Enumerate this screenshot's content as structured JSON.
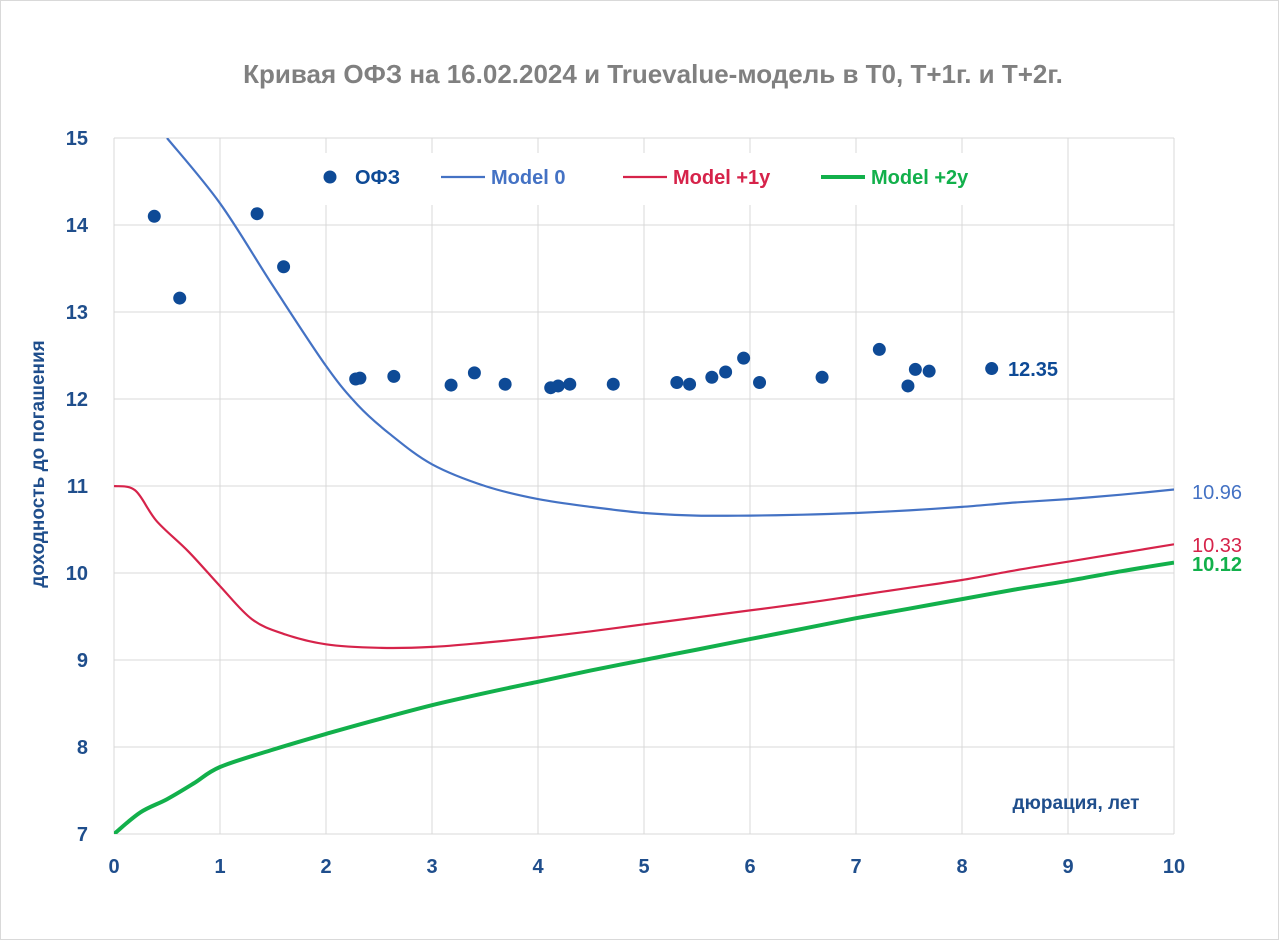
{
  "chart_data": {
    "type": "scatter",
    "title": "Кривая ОФЗ на 16.02.2024 и Truevalue-модель в Т0, Т+1г. и Т+2г.",
    "xlabel": "дюрация, лет",
    "ylabel": "доходность до погашения",
    "xlim": [
      0,
      10
    ],
    "ylim": [
      7,
      15
    ],
    "xticks": [
      "0",
      "1",
      "2",
      "3",
      "4",
      "5",
      "6",
      "7",
      "8",
      "9",
      "10"
    ],
    "yticks": [
      "7",
      "8",
      "9",
      "10",
      "11",
      "12",
      "13",
      "14",
      "15"
    ],
    "grid": true,
    "legend_position": "top",
    "colors": {
      "ofz": "#0e4a96",
      "model0": "#4472c4",
      "model1": "#d6234a",
      "model2": "#12b04b"
    },
    "series": [
      {
        "name": "ОФЗ",
        "kind": "points",
        "x": [
          0.38,
          0.62,
          1.35,
          1.6,
          2.28,
          2.32,
          2.64,
          3.18,
          3.4,
          3.69,
          4.12,
          4.19,
          4.3,
          4.71,
          5.31,
          5.43,
          5.64,
          5.77,
          5.94,
          6.09,
          6.68,
          7.22,
          7.49,
          7.56,
          7.69,
          8.28
        ],
        "y": [
          14.1,
          13.16,
          14.13,
          13.52,
          12.23,
          12.24,
          12.26,
          12.16,
          12.3,
          12.17,
          12.13,
          12.15,
          12.17,
          12.17,
          12.19,
          12.17,
          12.25,
          12.31,
          12.47,
          12.19,
          12.25,
          12.57,
          12.15,
          12.34,
          12.32,
          12.35
        ],
        "end_label": "12.35"
      },
      {
        "name": "Model 0",
        "kind": "line",
        "x": [
          0.5,
          1,
          1.5,
          2,
          2.3,
          2.6,
          3,
          3.5,
          4,
          4.5,
          5,
          5.5,
          6,
          6.5,
          7,
          7.5,
          8,
          8.5,
          9,
          9.5,
          10
        ],
        "y": [
          15.0,
          14.25,
          13.3,
          12.38,
          11.93,
          11.6,
          11.25,
          11.0,
          10.85,
          10.76,
          10.69,
          10.66,
          10.66,
          10.67,
          10.69,
          10.72,
          10.76,
          10.81,
          10.85,
          10.9,
          10.96
        ],
        "end_label": "10.96"
      },
      {
        "name": "Model +1y",
        "kind": "line",
        "x": [
          0,
          0.2,
          0.4,
          0.7,
          1.0,
          1.3,
          1.6,
          2.0,
          2.5,
          3.0,
          3.5,
          4.0,
          4.5,
          5.0,
          5.5,
          6.0,
          6.5,
          7.0,
          7.5,
          8.0,
          8.5,
          9.0,
          9.5,
          10.0
        ],
        "y": [
          11.0,
          10.95,
          10.6,
          10.25,
          9.85,
          9.47,
          9.3,
          9.18,
          9.14,
          9.15,
          9.2,
          9.26,
          9.33,
          9.41,
          9.49,
          9.57,
          9.65,
          9.74,
          9.83,
          9.92,
          10.03,
          10.13,
          10.23,
          10.33
        ],
        "end_label": "10.33"
      },
      {
        "name": "Model +2y",
        "kind": "line",
        "x": [
          0,
          0.25,
          0.5,
          0.75,
          1.0,
          1.5,
          2.0,
          2.5,
          3.0,
          3.5,
          4.0,
          4.5,
          5.0,
          5.5,
          6.0,
          6.5,
          7.0,
          7.5,
          8.0,
          8.5,
          9.0,
          9.5,
          10.0
        ],
        "y": [
          7.0,
          7.25,
          7.4,
          7.58,
          7.77,
          7.97,
          8.15,
          8.32,
          8.48,
          8.62,
          8.75,
          8.88,
          9.0,
          9.12,
          9.24,
          9.36,
          9.48,
          9.59,
          9.7,
          9.81,
          9.91,
          10.02,
          10.12
        ],
        "end_label": "10.12"
      }
    ]
  }
}
